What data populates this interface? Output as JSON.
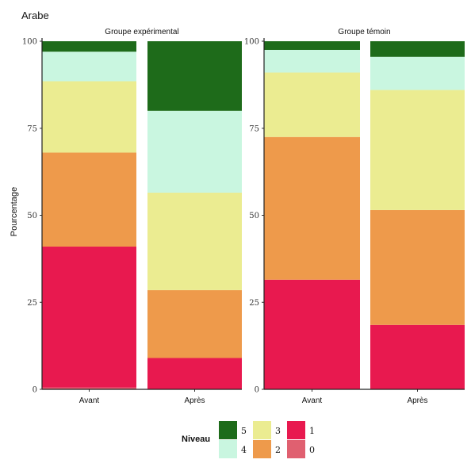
{
  "title": "Arabe",
  "chart_data": {
    "type": "bar",
    "stacked": true,
    "ylabel": "Pourcentage",
    "ylim": [
      0,
      100
    ],
    "yticks": [
      "0",
      "25",
      "50",
      "75",
      "100"
    ],
    "categories": [
      "Avant",
      "Après"
    ],
    "levels": [
      "0",
      "1",
      "2",
      "3",
      "4",
      "5"
    ],
    "colors": {
      "0": "#e06070",
      "1": "#e8194f",
      "2": "#ee9a4b",
      "3": "#ebec91",
      "4": "#c9f6e0",
      "5": "#1e6b1a"
    },
    "facets": [
      {
        "label": "Groupe expérimental",
        "bars": [
          {
            "category": "Avant",
            "values": {
              "0": 0.5,
              "1": 40.5,
              "2": 27,
              "3": 20.5,
              "4": 8.5,
              "5": 3
            }
          },
          {
            "category": "Après",
            "values": {
              "0": 0,
              "1": 9,
              "2": 19.5,
              "3": 28,
              "4": 23.5,
              "5": 20
            }
          }
        ]
      },
      {
        "label": "Groupe témoin",
        "bars": [
          {
            "category": "Avant",
            "values": {
              "0": 0,
              "1": 31.5,
              "2": 41,
              "3": 18.5,
              "4": 6.5,
              "5": 2.5
            }
          },
          {
            "category": "Après",
            "values": {
              "0": 0,
              "1": 18.5,
              "2": 33,
              "3": 34.5,
              "4": 9.5,
              "5": 4.5
            }
          }
        ]
      }
    ],
    "legend": {
      "title": "Niveau",
      "position": "bottom",
      "order": [
        "5",
        "4",
        "3",
        "2",
        "1",
        "0"
      ]
    }
  }
}
